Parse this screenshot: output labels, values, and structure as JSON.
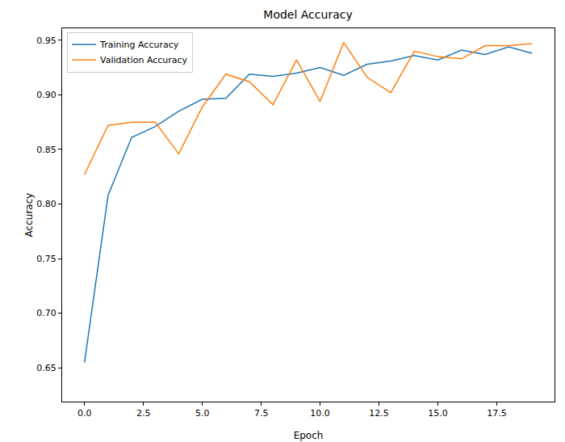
{
  "chart_data": {
    "type": "line",
    "title": "Model Accuracy",
    "x_label": "Epoch",
    "y_label": "Accuracy",
    "x": [
      0,
      1,
      2,
      3,
      4,
      5,
      6,
      7,
      8,
      9,
      10,
      11,
      12,
      13,
      14,
      15,
      16,
      17,
      18,
      19
    ],
    "series": [
      {
        "name": "Training Accuracy",
        "color": "#1f77b4",
        "values": [
          0.655,
          0.808,
          0.861,
          0.871,
          0.885,
          0.896,
          0.897,
          0.919,
          0.917,
          0.92,
          0.925,
          0.918,
          0.928,
          0.931,
          0.936,
          0.932,
          0.941,
          0.937,
          0.944,
          0.938
        ]
      },
      {
        "name": "Validation Accuracy",
        "color": "#ff7f0e",
        "values": [
          0.827,
          0.872,
          0.875,
          0.875,
          0.846,
          0.889,
          0.919,
          0.912,
          0.891,
          0.932,
          0.894,
          0.948,
          0.916,
          0.902,
          0.94,
          0.935,
          0.933,
          0.945,
          0.945,
          0.947
        ]
      }
    ],
    "xlim": [
      -0.95,
      19.95
    ],
    "xticks": [
      {
        "value": 0,
        "label": "0.0"
      },
      {
        "value": 2.5,
        "label": "2.5"
      },
      {
        "value": 5,
        "label": "5.0"
      },
      {
        "value": 7.5,
        "label": "7.5"
      },
      {
        "value": 10,
        "label": "10.0"
      },
      {
        "value": 12.5,
        "label": "12.5"
      },
      {
        "value": 15,
        "label": "15.0"
      },
      {
        "value": 17.5,
        "label": "17.5"
      }
    ],
    "ylim": [
      0.619,
      0.961
    ],
    "yticks": [
      0.65,
      {
        "value": 0.7,
        "label": "0.70"
      },
      0.75,
      {
        "value": 0.8,
        "label": "0.80"
      },
      0.85,
      {
        "value": 0.9,
        "label": "0.90"
      },
      0.95
    ],
    "grid": false,
    "legend": "upper left"
  }
}
